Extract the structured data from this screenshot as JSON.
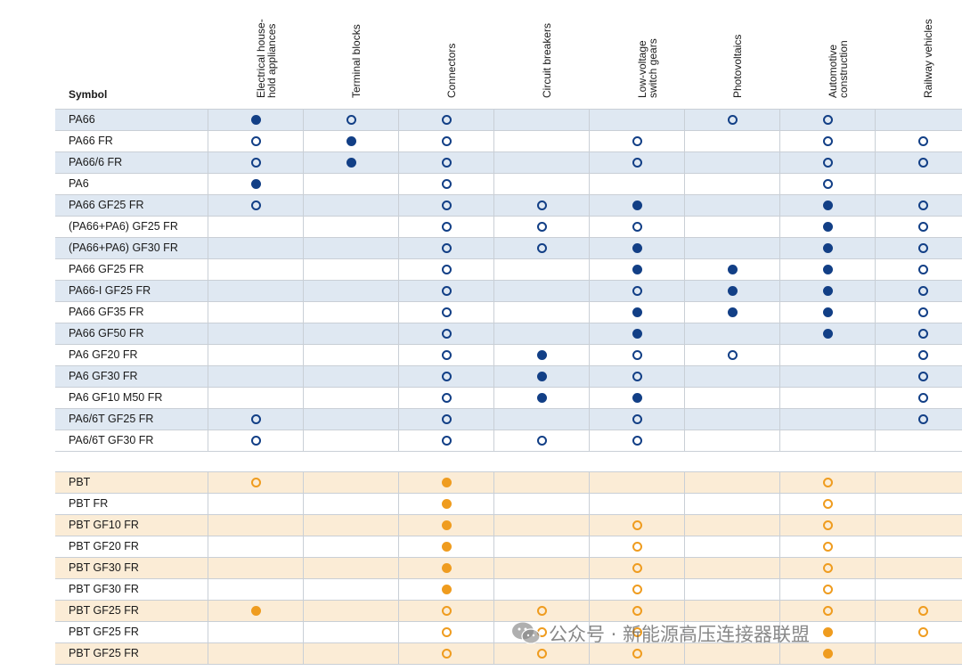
{
  "symbol_label": "Symbol",
  "columns": [
    {
      "key": "electrical",
      "lines": [
        "Electrical house-",
        "hold appliances"
      ]
    },
    {
      "key": "terminal",
      "lines": [
        "Terminal blocks"
      ]
    },
    {
      "key": "connectors",
      "lines": [
        "Connectors"
      ]
    },
    {
      "key": "circuit",
      "lines": [
        "Circuit breakers"
      ]
    },
    {
      "key": "lowvoltage",
      "lines": [
        "Low-voltage",
        "switch gears"
      ]
    },
    {
      "key": "photovoltaics",
      "lines": [
        "Photovoltaics"
      ]
    },
    {
      "key": "automotive",
      "lines": [
        "Automotive",
        "construction"
      ]
    },
    {
      "key": "railway",
      "lines": [
        "Railway vehicles"
      ]
    }
  ],
  "legend_values": {
    "F": "filled",
    "O": "open",
    "": "empty"
  },
  "colors": {
    "pa_marker": "#123f86",
    "pbt_marker": "#ef9c1f",
    "pa_band": "#dfe8f2",
    "pbt_band": "#fbecd6"
  },
  "groups": [
    {
      "key": "pa",
      "rows": [
        {
          "symbol": "PA66",
          "marks": [
            "F",
            "O",
            "O",
            "",
            "",
            "O",
            "O",
            ""
          ]
        },
        {
          "symbol": "PA66 FR",
          "marks": [
            "O",
            "F",
            "O",
            "",
            "O",
            "",
            "O",
            "O"
          ]
        },
        {
          "symbol": "PA66/6 FR",
          "marks": [
            "O",
            "F",
            "O",
            "",
            "O",
            "",
            "O",
            "O"
          ]
        },
        {
          "symbol": "PA6",
          "marks": [
            "F",
            "",
            "O",
            "",
            "",
            "",
            "O",
            ""
          ]
        },
        {
          "symbol": "PA66 GF25 FR",
          "marks": [
            "O",
            "",
            "O",
            "O",
            "F",
            "",
            "F",
            "O"
          ]
        },
        {
          "symbol": "(PA66+PA6) GF25 FR",
          "marks": [
            "",
            "",
            "O",
            "O",
            "O",
            "",
            "F",
            "O"
          ]
        },
        {
          "symbol": "(PA66+PA6) GF30 FR",
          "marks": [
            "",
            "",
            "O",
            "O",
            "F",
            "",
            "F",
            "O"
          ]
        },
        {
          "symbol": "PA66 GF25 FR",
          "marks": [
            "",
            "",
            "O",
            "",
            "F",
            "F",
            "F",
            "O"
          ]
        },
        {
          "symbol": "PA66-I GF25 FR",
          "marks": [
            "",
            "",
            "O",
            "",
            "O",
            "F",
            "F",
            "O"
          ]
        },
        {
          "symbol": "PA66 GF35 FR",
          "marks": [
            "",
            "",
            "O",
            "",
            "F",
            "F",
            "F",
            "O"
          ]
        },
        {
          "symbol": "PA66 GF50 FR",
          "marks": [
            "",
            "",
            "O",
            "",
            "F",
            "",
            "F",
            "O"
          ]
        },
        {
          "symbol": "PA6 GF20 FR",
          "marks": [
            "",
            "",
            "O",
            "F",
            "O",
            "O",
            "",
            "O"
          ]
        },
        {
          "symbol": "PA6 GF30 FR",
          "marks": [
            "",
            "",
            "O",
            "F",
            "O",
            "",
            "",
            "O"
          ]
        },
        {
          "symbol": "PA6 GF10 M50 FR",
          "marks": [
            "",
            "",
            "O",
            "F",
            "F",
            "",
            "",
            "O"
          ]
        },
        {
          "symbol": "PA6/6T GF25 FR",
          "marks": [
            "O",
            "",
            "O",
            "",
            "O",
            "",
            "",
            "O"
          ]
        },
        {
          "symbol": "PA6/6T GF30 FR",
          "marks": [
            "O",
            "",
            "O",
            "O",
            "O",
            "",
            "",
            ""
          ]
        }
      ]
    },
    {
      "key": "pbt",
      "rows": [
        {
          "symbol": "PBT",
          "marks": [
            "O",
            "",
            "F",
            "",
            "",
            "",
            "O",
            ""
          ]
        },
        {
          "symbol": "PBT FR",
          "marks": [
            "",
            "",
            "F",
            "",
            "",
            "",
            "O",
            ""
          ]
        },
        {
          "symbol": "PBT GF10 FR",
          "marks": [
            "",
            "",
            "F",
            "",
            "O",
            "",
            "O",
            ""
          ]
        },
        {
          "symbol": "PBT GF20 FR",
          "marks": [
            "",
            "",
            "F",
            "",
            "O",
            "",
            "O",
            ""
          ]
        },
        {
          "symbol": "PBT GF30 FR",
          "marks": [
            "",
            "",
            "F",
            "",
            "O",
            "",
            "O",
            ""
          ]
        },
        {
          "symbol": "PBT GF30 FR",
          "marks": [
            "",
            "",
            "F",
            "",
            "O",
            "",
            "O",
            ""
          ]
        },
        {
          "symbol": "PBT GF25 FR",
          "marks": [
            "F",
            "",
            "O",
            "O",
            "O",
            "",
            "O",
            "O"
          ]
        },
        {
          "symbol": "PBT GF25 FR",
          "marks": [
            "",
            "",
            "O",
            "O",
            "O",
            "",
            "F",
            "O"
          ]
        },
        {
          "symbol": "PBT GF25 FR",
          "marks": [
            "",
            "",
            "O",
            "O",
            "O",
            "",
            "F",
            ""
          ]
        }
      ]
    }
  ],
  "watermark": {
    "icon": "wechat-icon",
    "text": "公众号 · 新能源高压连接器联盟"
  }
}
